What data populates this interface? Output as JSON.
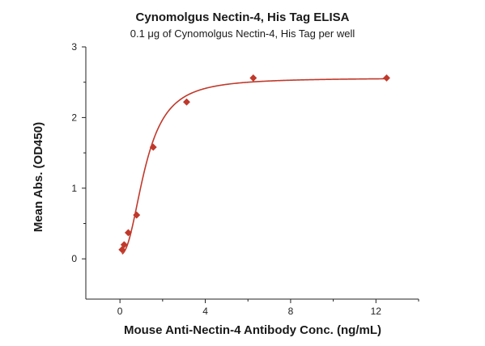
{
  "chart_data": {
    "type": "scatter",
    "title": "Cynomolgus Nectin-4, His Tag ELISA",
    "subtitle": "0.1 μg of Cynomolgus Nectin-4, His Tag per well",
    "xlabel": "Mouse Anti-Nectin-4 Antibody Conc. (ng/mL)",
    "ylabel": "Mean Abs. (OD450)",
    "xlim": [
      -1.6,
      14.0
    ],
    "ylim": [
      -0.57,
      3.0
    ],
    "xticks": [
      0,
      4,
      8,
      12
    ],
    "yticks": [
      0,
      1,
      2,
      3
    ],
    "grid": false,
    "legend": "none",
    "colors": {
      "series": "#c0392b",
      "axis": "#222222"
    },
    "series": [
      {
        "marker": "diamond",
        "x": [
          0.098,
          0.195,
          0.39,
          0.78,
          1.56,
          3.125,
          6.25,
          12.5
        ],
        "y": [
          0.13,
          0.2,
          0.37,
          0.62,
          1.58,
          2.22,
          2.56,
          2.56
        ]
      }
    ],
    "fit": {
      "model": "4-parameter logistic",
      "bottom": 0.06,
      "top": 2.56,
      "ec50": 1.2,
      "hill": 2.3
    }
  }
}
